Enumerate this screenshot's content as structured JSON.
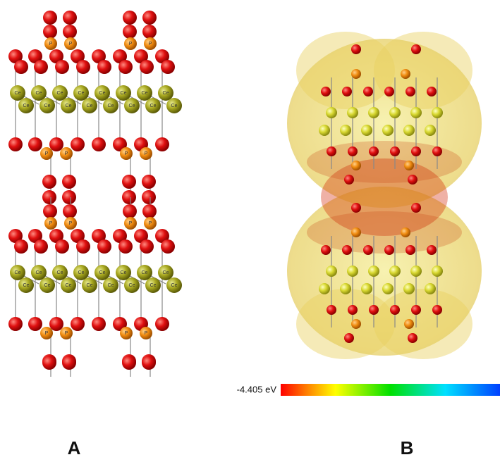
{
  "panels": [
    {
      "label": "A"
    },
    {
      "label": "B"
    }
  ],
  "colorbar": {
    "label": "-4.405 eV"
  },
  "atom_labels": {
    "cerium": "Ce",
    "phosphorus": "P"
  }
}
